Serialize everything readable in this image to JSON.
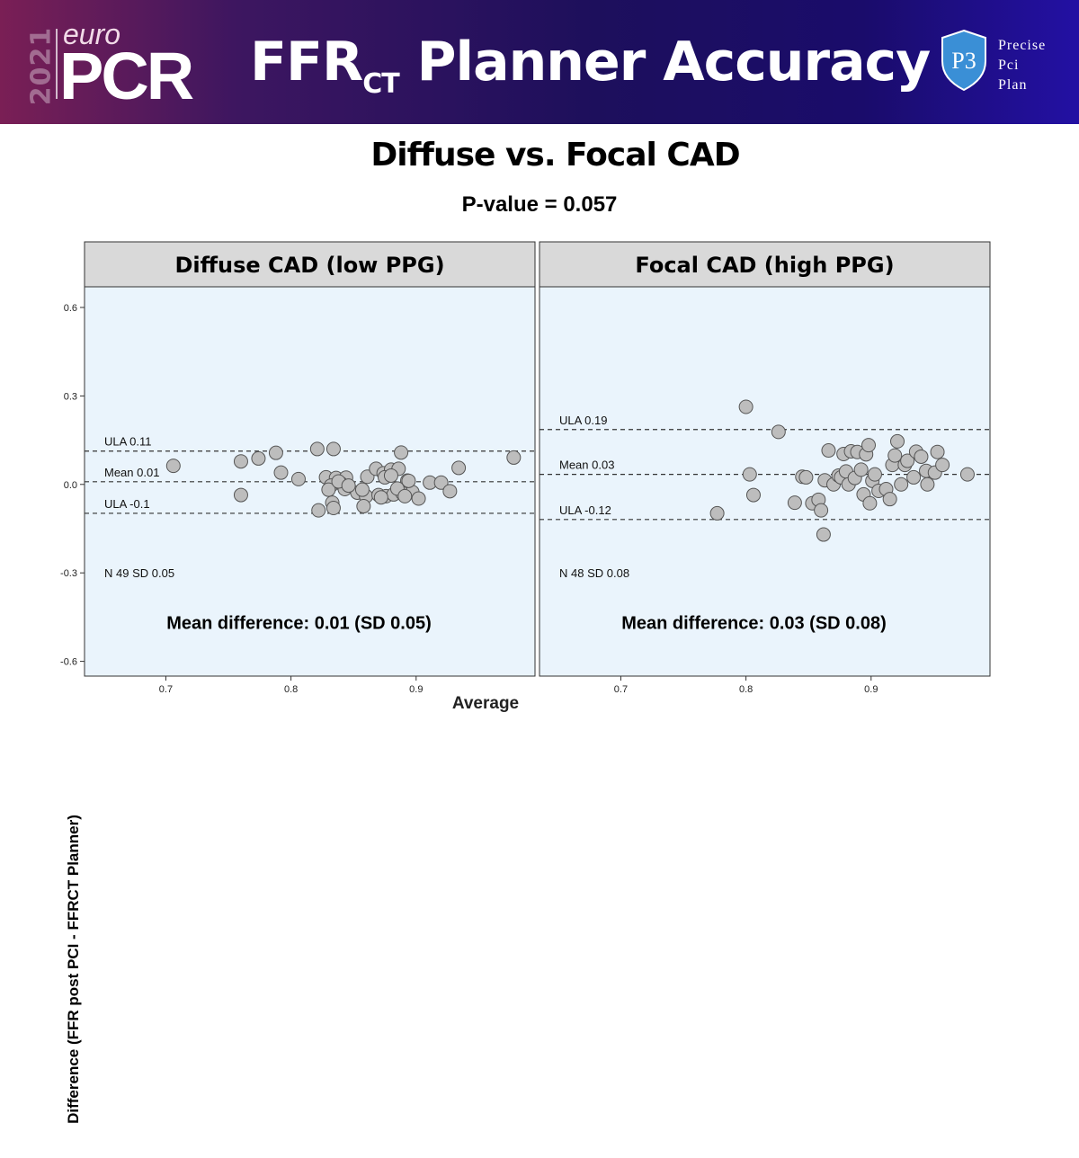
{
  "header": {
    "year": "2021",
    "logo_small": "euro",
    "logo_big": "PCR",
    "title_main": "FFR",
    "title_sub": "CT",
    "title_rest": " Planner Accuracy",
    "brand_lines": [
      "Precise",
      "Pci",
      "Plan"
    ],
    "brand_mark": "P3"
  },
  "subtitle": "Diffuse vs. Focal CAD",
  "pvalue": "P-value = 0.057",
  "colors": {
    "panel_bg": "#eaf4fc",
    "strip_bg": "#d9d9d9",
    "point_fill": "#bdbdbd",
    "point_stroke": "#555555"
  },
  "chart_data": {
    "type": "scatter",
    "xlabel": "Average",
    "ylabel": "Difference (FFR post PCI - FFRCT Planner)",
    "xlim": [
      0.635,
      0.995
    ],
    "ylim": [
      -0.65,
      0.67
    ],
    "xticks": [
      "0.7",
      "0.8",
      "0.9"
    ],
    "yticks": [
      "-0.6",
      "-0.3",
      "0.0",
      "0.3",
      "0.6"
    ],
    "panels": [
      {
        "title": "Diffuse CAD (low PPG)",
        "lines": [
          {
            "label": "ULA  0.11",
            "y": 0.113
          },
          {
            "label": "Mean  0.01",
            "y": 0.009
          },
          {
            "label": "ULA  -0.1",
            "y": -0.098
          }
        ],
        "stats": "N  49    SD  0.05",
        "annotation": "Mean difference: 0.01 (SD 0.05)",
        "points": [
          [
            0.706,
            0.063
          ],
          [
            0.76,
            0.078
          ],
          [
            0.774,
            0.088
          ],
          [
            0.788,
            0.107
          ],
          [
            0.792,
            0.04
          ],
          [
            0.76,
            -0.036
          ],
          [
            0.806,
            0.018
          ],
          [
            0.821,
            0.12
          ],
          [
            0.834,
            0.12
          ],
          [
            0.828,
            0.024
          ],
          [
            0.836,
            0.022
          ],
          [
            0.844,
            0.023
          ],
          [
            0.832,
            -0.004
          ],
          [
            0.84,
            0.003
          ],
          [
            0.83,
            -0.018
          ],
          [
            0.843,
            -0.016
          ],
          [
            0.853,
            -0.028
          ],
          [
            0.86,
            -0.04
          ],
          [
            0.861,
            0.026
          ],
          [
            0.868,
            0.053
          ],
          [
            0.874,
            0.038
          ],
          [
            0.88,
            0.05
          ],
          [
            0.886,
            0.053
          ],
          [
            0.888,
            0.108
          ],
          [
            0.893,
            0.013
          ],
          [
            0.87,
            -0.036
          ],
          [
            0.876,
            -0.04
          ],
          [
            0.882,
            -0.034
          ],
          [
            0.889,
            -0.03
          ],
          [
            0.897,
            -0.026
          ],
          [
            0.885,
            -0.014
          ],
          [
            0.872,
            -0.044
          ],
          [
            0.891,
            -0.04
          ],
          [
            0.902,
            -0.048
          ],
          [
            0.911,
            0.006
          ],
          [
            0.92,
            0.006
          ],
          [
            0.927,
            -0.023
          ],
          [
            0.934,
            0.056
          ],
          [
            0.978,
            0.091
          ],
          [
            0.833,
            -0.062
          ],
          [
            0.822,
            -0.088
          ],
          [
            0.834,
            -0.08
          ],
          [
            0.858,
            -0.074
          ],
          [
            0.838,
            0.01
          ],
          [
            0.875,
            0.024
          ],
          [
            0.88,
            0.03
          ],
          [
            0.857,
            -0.018
          ],
          [
            0.846,
            -0.004
          ],
          [
            0.894,
            0.012
          ]
        ]
      },
      {
        "title": "Focal CAD (high PPG)",
        "lines": [
          {
            "label": "ULA  0.19",
            "y": 0.186
          },
          {
            "label": "Mean  0.03",
            "y": 0.034
          },
          {
            "label": "ULA  -0.12",
            "y": -0.119
          }
        ],
        "stats": "N  48    SD  0.08",
        "annotation": "Mean difference: 0.03 (SD 0.08)",
        "points": [
          [
            0.777,
            -0.098
          ],
          [
            0.8,
            0.263
          ],
          [
            0.803,
            0.034
          ],
          [
            0.806,
            -0.036
          ],
          [
            0.826,
            0.178
          ],
          [
            0.839,
            -0.062
          ],
          [
            0.845,
            0.026
          ],
          [
            0.848,
            0.024
          ],
          [
            0.853,
            -0.064
          ],
          [
            0.858,
            -0.052
          ],
          [
            0.86,
            -0.088
          ],
          [
            0.862,
            -0.17
          ],
          [
            0.863,
            0.014
          ],
          [
            0.866,
            0.115
          ],
          [
            0.87,
            0.0
          ],
          [
            0.874,
            0.03
          ],
          [
            0.876,
            0.024
          ],
          [
            0.878,
            0.103
          ],
          [
            0.88,
            0.044
          ],
          [
            0.882,
            0.0
          ],
          [
            0.884,
            0.112
          ],
          [
            0.887,
            0.022
          ],
          [
            0.889,
            0.11
          ],
          [
            0.892,
            0.05
          ],
          [
            0.894,
            -0.034
          ],
          [
            0.896,
            0.102
          ],
          [
            0.898,
            0.133
          ],
          [
            0.899,
            -0.064
          ],
          [
            0.901,
            0.012
          ],
          [
            0.903,
            0.034
          ],
          [
            0.906,
            -0.022
          ],
          [
            0.912,
            -0.016
          ],
          [
            0.915,
            -0.05
          ],
          [
            0.917,
            0.066
          ],
          [
            0.919,
            0.098
          ],
          [
            0.921,
            0.146
          ],
          [
            0.924,
            0.0
          ],
          [
            0.927,
            0.066
          ],
          [
            0.929,
            0.08
          ],
          [
            0.934,
            0.024
          ],
          [
            0.936,
            0.111
          ],
          [
            0.94,
            0.094
          ],
          [
            0.944,
            0.046
          ],
          [
            0.945,
            0.0
          ],
          [
            0.951,
            0.04
          ],
          [
            0.953,
            0.11
          ],
          [
            0.957,
            0.066
          ],
          [
            0.977,
            0.034
          ]
        ]
      }
    ]
  }
}
